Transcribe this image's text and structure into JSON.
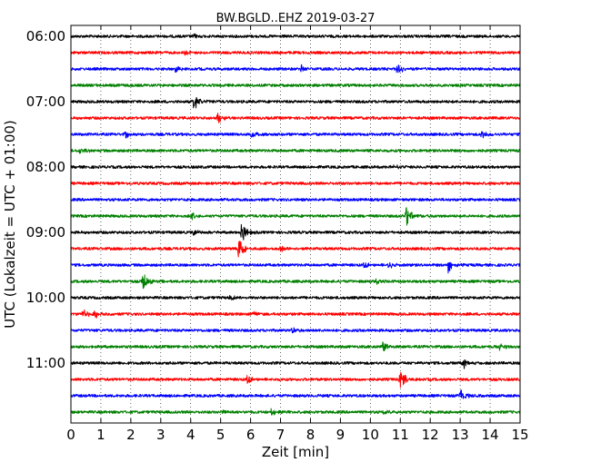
{
  "chart_data": {
    "type": "line",
    "title": "BW.BGLD..EHZ 2019-03-27",
    "xlabel": "Zeit  [min]",
    "ylabel": "UTC (Lokalzeit = UTC + 01:00)",
    "xlim": [
      0,
      15
    ],
    "x_ticks": [
      "0",
      "1",
      "2",
      "3",
      "4",
      "5",
      "6",
      "7",
      "8",
      "9",
      "10",
      "11",
      "12",
      "13",
      "14",
      "15"
    ],
    "y_ticks": [
      {
        "label": "06:00",
        "trace": 0
      },
      {
        "label": "07:00",
        "trace": 4
      },
      {
        "label": "08:00",
        "trace": 8
      },
      {
        "label": "09:00",
        "trace": 12
      },
      {
        "label": "10:00",
        "trace": 16
      },
      {
        "label": "11:00",
        "trace": 20
      }
    ],
    "trace_interval_min": 15,
    "grid": "vertical-dotted",
    "colors": [
      "#000000",
      "#ff0000",
      "#0000ff",
      "#008000"
    ],
    "traces": [
      {
        "start": "06:00",
        "events": [
          {
            "t": 4.1,
            "amp": 0.15
          }
        ]
      },
      {
        "start": "06:15",
        "events": [
          {
            "t": 3.8,
            "amp": 0.2
          }
        ]
      },
      {
        "start": "06:30",
        "events": [
          {
            "t": 3.5,
            "amp": 0.25
          },
          {
            "t": 7.7,
            "amp": 0.35
          },
          {
            "t": 10.9,
            "amp": 0.45
          }
        ]
      },
      {
        "start": "06:45",
        "events": [
          {
            "t": 1.2,
            "amp": 0.15
          }
        ]
      },
      {
        "start": "07:00",
        "events": [
          {
            "t": 4.1,
            "amp": 0.65
          }
        ]
      },
      {
        "start": "07:15",
        "events": [
          {
            "t": 4.9,
            "amp": 0.45
          }
        ]
      },
      {
        "start": "07:30",
        "events": [
          {
            "t": 1.8,
            "amp": 0.3
          },
          {
            "t": 6.0,
            "amp": 0.4
          },
          {
            "t": 13.7,
            "amp": 0.35
          }
        ]
      },
      {
        "start": "07:45",
        "events": [
          {
            "t": 0.3,
            "amp": 0.25
          }
        ]
      },
      {
        "start": "08:00",
        "events": [
          {
            "t": 10.8,
            "amp": 0.3
          }
        ]
      },
      {
        "start": "08:15",
        "events": []
      },
      {
        "start": "08:30",
        "events": []
      },
      {
        "start": "08:45",
        "events": [
          {
            "t": 4.0,
            "amp": 0.35
          },
          {
            "t": 11.2,
            "amp": 0.75
          }
        ]
      },
      {
        "start": "09:00",
        "events": [
          {
            "t": 4.1,
            "amp": 0.25
          },
          {
            "t": 5.7,
            "amp": 0.8
          }
        ]
      },
      {
        "start": "09:15",
        "events": [
          {
            "t": 5.6,
            "amp": 1.1
          },
          {
            "t": 7.0,
            "amp": 0.25
          }
        ]
      },
      {
        "start": "09:30",
        "events": [
          {
            "t": 9.8,
            "amp": 0.25
          },
          {
            "t": 10.6,
            "amp": 0.3
          },
          {
            "t": 12.6,
            "amp": 0.6
          }
        ]
      },
      {
        "start": "09:45",
        "events": [
          {
            "t": 2.4,
            "amp": 0.75
          },
          {
            "t": 10.2,
            "amp": 0.2
          }
        ]
      },
      {
        "start": "10:00",
        "events": [
          {
            "t": 5.3,
            "amp": 0.2
          }
        ]
      },
      {
        "start": "10:15",
        "events": [
          {
            "t": 0.4,
            "amp": 0.35
          },
          {
            "t": 0.8,
            "amp": 0.35
          },
          {
            "t": 6.1,
            "amp": 0.2
          }
        ]
      },
      {
        "start": "10:30",
        "events": [
          {
            "t": 7.4,
            "amp": 0.2
          }
        ]
      },
      {
        "start": "10:45",
        "events": [
          {
            "t": 10.4,
            "amp": 0.5
          },
          {
            "t": 14.3,
            "amp": 0.25
          }
        ]
      },
      {
        "start": "11:00",
        "events": [
          {
            "t": 13.1,
            "amp": 0.4
          }
        ]
      },
      {
        "start": "11:15",
        "events": [
          {
            "t": 5.9,
            "amp": 0.35
          },
          {
            "t": 11.0,
            "amp": 0.75
          }
        ]
      },
      {
        "start": "11:30",
        "events": [
          {
            "t": 13.0,
            "amp": 0.6
          }
        ]
      },
      {
        "start": "11:45",
        "events": [
          {
            "t": 5.1,
            "amp": 0.25
          },
          {
            "t": 6.7,
            "amp": 0.25
          },
          {
            "t": 10.4,
            "amp": 0.2
          }
        ]
      }
    ]
  }
}
